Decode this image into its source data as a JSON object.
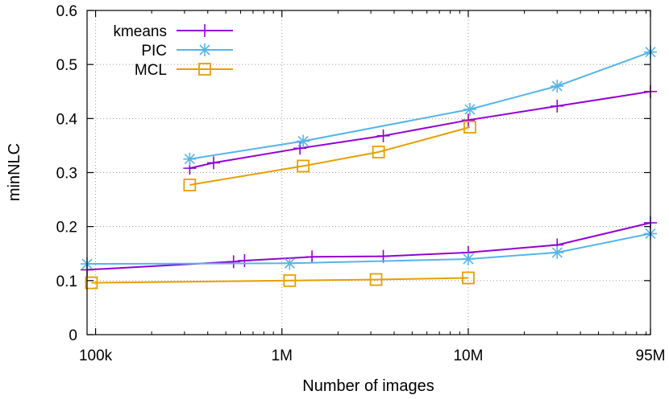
{
  "chart_data": {
    "type": "line",
    "title": "",
    "xlabel": "Number of images",
    "ylabel": "minNLC",
    "x_scale": "log",
    "xlim": [
      90000,
      95000000
    ],
    "ylim": [
      0,
      0.6
    ],
    "x_ticks": [
      {
        "value": 100000,
        "label": "100k"
      },
      {
        "value": 1000000,
        "label": "1M"
      },
      {
        "value": 10000000,
        "label": "10M"
      },
      {
        "value": 95000000,
        "label": "95M"
      }
    ],
    "y_ticks": [
      {
        "value": 0,
        "label": "0"
      },
      {
        "value": 0.1,
        "label": "0.1"
      },
      {
        "value": 0.2,
        "label": "0.2"
      },
      {
        "value": 0.3,
        "label": "0.3"
      },
      {
        "value": 0.4,
        "label": "0.4"
      },
      {
        "value": 0.5,
        "label": "0.5"
      },
      {
        "value": 0.6,
        "label": "0.6"
      }
    ],
    "grid": true,
    "legend_position": "top-left",
    "legend": [
      {
        "label": "kmeans",
        "color": "#9400d3",
        "marker": "plus"
      },
      {
        "label": "PIC",
        "color": "#56b4e9",
        "marker": "star"
      },
      {
        "label": "MCL",
        "color": "#e69f00",
        "marker": "square"
      }
    ],
    "series": [
      {
        "method": "kmeans",
        "color": "#9400d3",
        "marker": "plus",
        "points": [
          [
            320000,
            0.308
          ],
          [
            430000,
            0.318
          ],
          [
            1250000,
            0.345
          ],
          [
            3500000,
            0.368
          ],
          [
            10000000,
            0.397
          ],
          [
            30000000,
            0.423
          ],
          [
            95000000,
            0.45
          ]
        ]
      },
      {
        "method": "PIC",
        "color": "#56b4e9",
        "marker": "star",
        "points": [
          [
            320000,
            0.325
          ],
          [
            1300000,
            0.358
          ],
          [
            10200000,
            0.417
          ],
          [
            30000000,
            0.46
          ],
          [
            95000000,
            0.523
          ]
        ]
      },
      {
        "method": "MCL",
        "color": "#e69f00",
        "marker": "square",
        "points": [
          [
            320000,
            0.277
          ],
          [
            1300000,
            0.312
          ],
          [
            3300000,
            0.338
          ],
          [
            10200000,
            0.384
          ]
        ]
      },
      {
        "method": "kmeans",
        "color": "#9400d3",
        "marker": "plus",
        "points": [
          [
            90000,
            0.12
          ],
          [
            550000,
            0.135
          ],
          [
            630000,
            0.137
          ],
          [
            1450000,
            0.144
          ],
          [
            3500000,
            0.145
          ],
          [
            10000000,
            0.152
          ],
          [
            30000000,
            0.166
          ],
          [
            95000000,
            0.207
          ]
        ]
      },
      {
        "method": "PIC",
        "color": "#56b4e9",
        "marker": "star",
        "points": [
          [
            90000,
            0.131
          ],
          [
            1100000,
            0.132
          ],
          [
            10000000,
            0.14
          ],
          [
            30000000,
            0.152
          ],
          [
            95000000,
            0.187
          ]
        ]
      },
      {
        "method": "MCL",
        "color": "#e69f00",
        "marker": "square",
        "points": [
          [
            95000,
            0.096
          ],
          [
            1100000,
            0.1
          ],
          [
            3200000,
            0.102
          ],
          [
            10000000,
            0.105
          ]
        ]
      }
    ]
  }
}
